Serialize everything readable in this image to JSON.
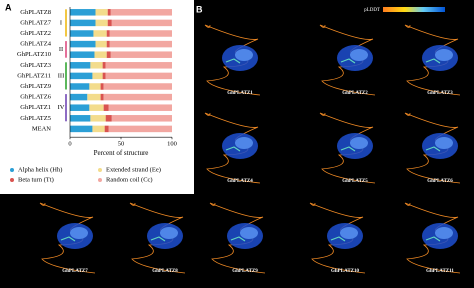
{
  "chart_data": {
    "type": "stacked-bar-horizontal",
    "panel_label": "A",
    "x_label": "Percent of structure",
    "categories": [
      "GhPLATZ8",
      "GhPLATZ7",
      "GhPLATZ2",
      "GhPLATZ4",
      "GhPLATZ10",
      "GhPLATZ3",
      "GhPLATZ11",
      "GhPLATZ9",
      "GhPLATZ6",
      "GhPLATZ1",
      "GhPLATZ5",
      "MEAN"
    ],
    "series": [
      {
        "name": "Alpha helix (Hh)",
        "color": "#2b9fd6",
        "values": [
          25,
          25,
          23,
          25,
          24,
          20,
          22,
          19,
          17,
          19,
          20,
          22
        ]
      },
      {
        "name": "Extended strand (Ee)",
        "color": "#f3dc8c",
        "values": [
          12,
          12,
          13,
          11,
          12,
          12,
          10,
          11,
          13,
          14,
          15,
          12
        ]
      },
      {
        "name": "Beta turn (Tt)",
        "color": "#d9534f",
        "values": [
          3,
          4,
          3,
          3,
          4,
          3,
          3,
          3,
          3,
          5,
          6,
          4
        ]
      },
      {
        "name": "Random coil (Cc)",
        "color": "#f2a7a1",
        "values": [
          60,
          59,
          61,
          61,
          60,
          65,
          65,
          67,
          67,
          62,
          59,
          62
        ]
      }
    ],
    "groups": [
      {
        "label": "I",
        "color": "#f2c744",
        "size": 3
      },
      {
        "label": "II",
        "color": "#e4709a",
        "size": 2
      },
      {
        "label": "III",
        "color": "#5cb85c",
        "size": 3
      },
      {
        "label": "IV",
        "color": "#8e6cc4",
        "size": 3
      }
    ],
    "xlim": [
      0,
      100
    ],
    "xticks": [
      0,
      50,
      100
    ]
  },
  "panel_b": {
    "label": "B",
    "colorbar_title": "pLDDT",
    "structures": [
      "GhPLATZ1",
      "GhPLATZ2",
      "GhPLATZ3",
      "GhPLATZ4",
      "GhPLATZ5",
      "GhPLATZ6",
      "GhPLATZ7",
      "GhPLATZ8",
      "GhPLATZ9",
      "GhPLATZ10",
      "GhPLATZ11"
    ]
  }
}
